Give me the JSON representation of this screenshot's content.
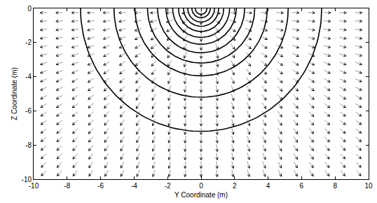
{
  "chart_data": {
    "type": "vector_contour",
    "x_label": "Y Coordinate (m)",
    "y_label": "Z Coordinate (m)",
    "xlim": [
      -10,
      10
    ],
    "xticks": [
      -10,
      -8,
      -6,
      -4,
      -2,
      0,
      2,
      4,
      6,
      8,
      10
    ],
    "ylim": [
      -10,
      0
    ],
    "yticks": [
      -10,
      -8,
      -6,
      -4,
      -2,
      0
    ],
    "contours": {
      "center": [
        0,
        0
      ],
      "radii": [
        7.2,
        5.2,
        3.95,
        3.2,
        2.6,
        2.1,
        1.7,
        1.35,
        1.05,
        0.8,
        0.55,
        0.35
      ],
      "color": "#000000"
    },
    "vectors": {
      "y": [
        -9.4,
        -8.46,
        -7.52,
        -6.58,
        -5.64,
        -4.7,
        -3.76,
        -2.82,
        -1.88,
        -0.94,
        0,
        0.94,
        1.88,
        2.82,
        3.76,
        4.7,
        5.64,
        6.58,
        7.52,
        8.46,
        9.4
      ],
      "z": [
        -0.25,
        -0.74,
        -1.24,
        -1.73,
        -2.23,
        -2.72,
        -3.22,
        -3.71,
        -4.21,
        -4.7,
        -5.2,
        -5.69,
        -6.19,
        -6.68,
        -7.18,
        -7.67,
        -8.17,
        -8.66,
        -9.16,
        -9.65
      ],
      "direction": "outward",
      "color": "#555555"
    },
    "grid": false
  }
}
